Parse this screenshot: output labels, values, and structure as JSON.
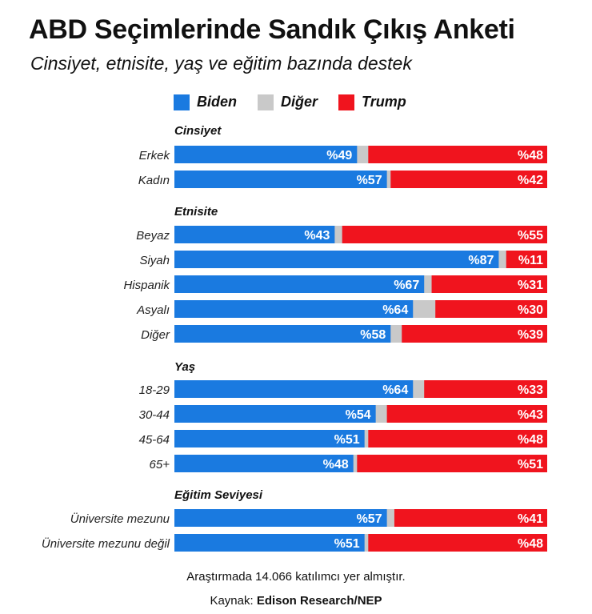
{
  "title": "ABD Seçimlerinde Sandık Çıkış Anketi",
  "subtitle": "Cinsiyet, etnisite, yaş ve eğitim bazında destek",
  "colors": {
    "biden": "#1a7ae0",
    "diger": "#c9c9c9",
    "trump": "#f0141e"
  },
  "chart_data": {
    "type": "bar",
    "stacked": true,
    "orientation": "horizontal",
    "xlim": [
      0,
      100
    ],
    "grid": false,
    "legend_position": "top",
    "value_prefix": "%",
    "legend": [
      "Biden",
      "Diğer",
      "Trump"
    ],
    "groups": [
      {
        "name": "Cinsiyet",
        "rows": [
          {
            "label": "Erkek",
            "biden": 49,
            "trump": 48
          },
          {
            "label": "Kadın",
            "biden": 57,
            "trump": 42
          }
        ]
      },
      {
        "name": "Etnisite",
        "rows": [
          {
            "label": "Beyaz",
            "biden": 43,
            "trump": 55
          },
          {
            "label": "Siyah",
            "biden": 87,
            "trump": 11
          },
          {
            "label": "Hispanik",
            "biden": 67,
            "trump": 31
          },
          {
            "label": "Asyalı",
            "biden": 64,
            "trump": 30
          },
          {
            "label": "Diğer",
            "biden": 58,
            "trump": 39
          }
        ]
      },
      {
        "name": "Yaş",
        "rows": [
          {
            "label": "18-29",
            "biden": 64,
            "trump": 33
          },
          {
            "label": "30-44",
            "biden": 54,
            "trump": 43
          },
          {
            "label": "45-64",
            "biden": 51,
            "trump": 48
          },
          {
            "label": "65+",
            "biden": 48,
            "trump": 51
          }
        ]
      },
      {
        "name": "Eğitim Seviyesi",
        "rows": [
          {
            "label": "Üniversite mezunu",
            "biden": 57,
            "trump": 41
          },
          {
            "label": "Üniversite mezunu değil",
            "biden": 51,
            "trump": 48
          }
        ]
      }
    ]
  },
  "footer": {
    "note": "Araştırmada 14.066 katılımcı yer almıştır.",
    "source_label": "Kaynak:",
    "source_value": "Edison Research/NEP"
  }
}
